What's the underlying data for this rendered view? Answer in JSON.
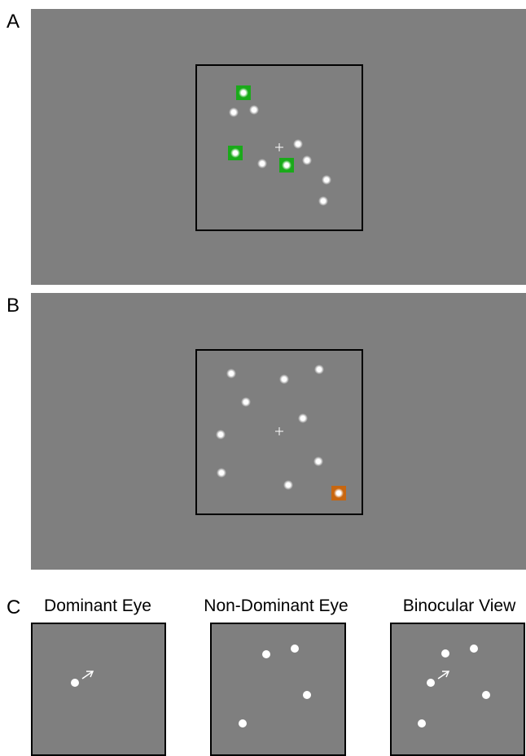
{
  "panels": {
    "a": {
      "label": "A"
    },
    "b": {
      "label": "B"
    },
    "c": {
      "label": "C",
      "views": [
        "Dominant Eye",
        "Non-Dominant Eye",
        "Binocular View"
      ]
    }
  }
}
